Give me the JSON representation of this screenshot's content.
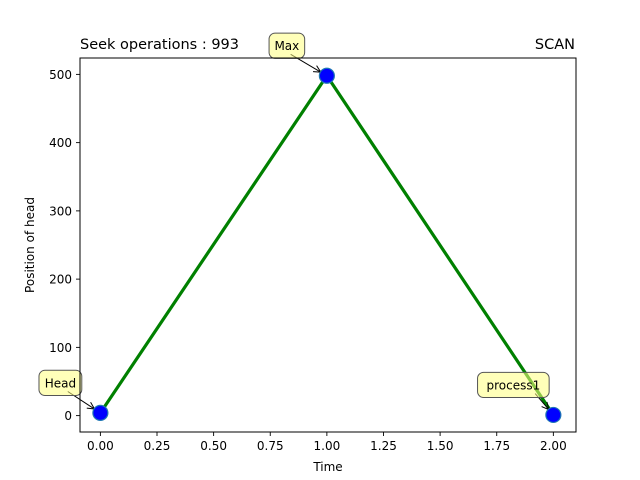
{
  "chart_data": {
    "type": "line",
    "title_left": "Seek operations : 993",
    "title_right": "SCAN",
    "xlabel": "Time",
    "ylabel": "Position of head",
    "xlim": [
      -0.09,
      2.1
    ],
    "ylim": [
      -24,
      524
    ],
    "x_ticks": [
      0.0,
      0.25,
      0.5,
      0.75,
      1.0,
      1.25,
      1.5,
      1.75,
      2.0
    ],
    "x_tick_labels": [
      "0.00",
      "0.25",
      "0.50",
      "0.75",
      "1.00",
      "1.25",
      "1.50",
      "1.75",
      "2.00"
    ],
    "y_ticks": [
      0,
      100,
      200,
      300,
      400,
      500
    ],
    "y_tick_labels": [
      "0",
      "100",
      "200",
      "300",
      "400",
      "500"
    ],
    "grid": false,
    "series": [
      {
        "x": [
          0,
          1,
          2
        ],
        "y": [
          4,
          498,
          1
        ],
        "line_color": "#008000",
        "marker_color": "#0000ff",
        "marker_edge_color": "#1f77b4"
      }
    ],
    "annotations": [
      {
        "text": "Head",
        "x": 0,
        "y": 4,
        "placement": "upper-left"
      },
      {
        "text": "Max",
        "x": 1,
        "y": 498,
        "placement": "upper-left"
      },
      {
        "text": "process1",
        "x": 2,
        "y": 1,
        "placement": "upper-left"
      }
    ],
    "annotation_box_color": "#ffff80"
  }
}
